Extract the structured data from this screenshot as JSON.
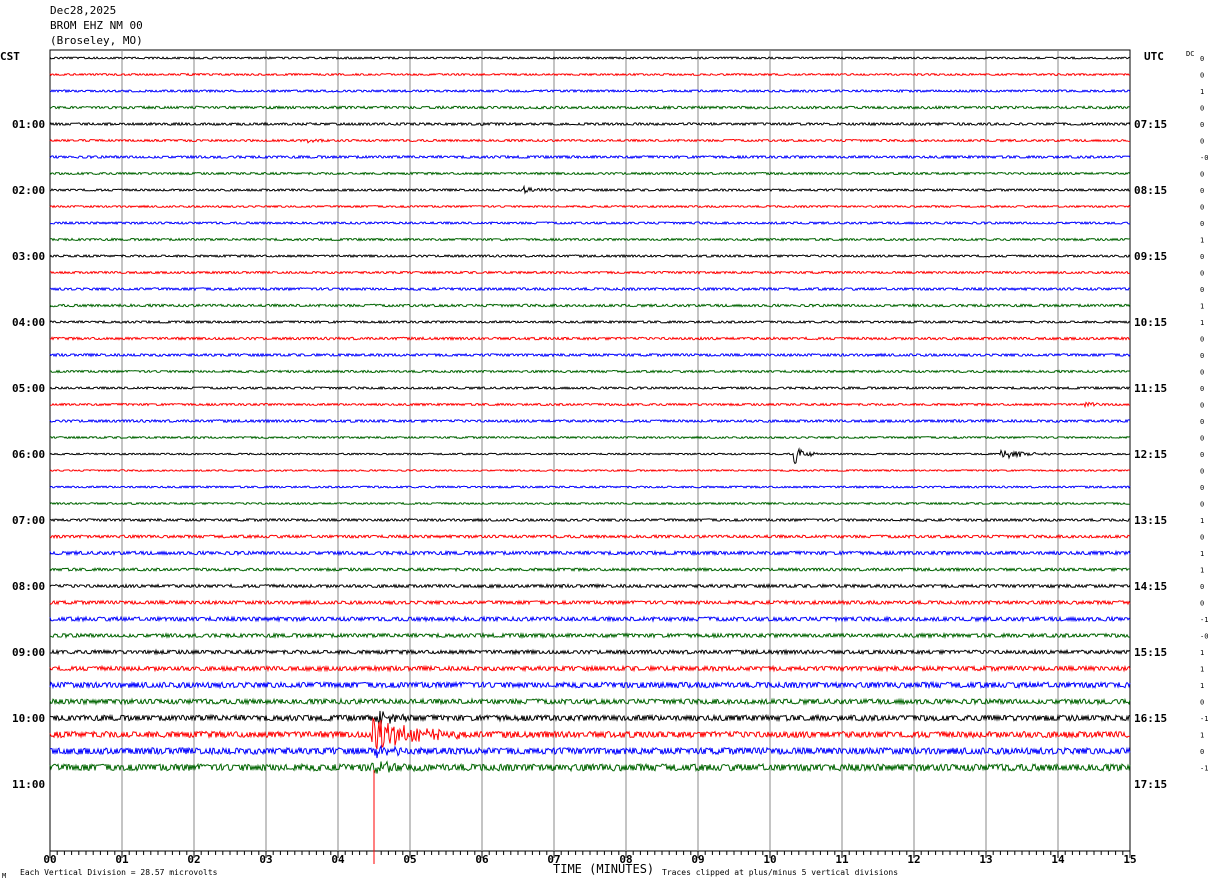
{
  "header": {
    "date": "Dec28,2025",
    "station": "BROM EHZ NM 00",
    "location": "(Broseley, MO)"
  },
  "left_tz": "CST",
  "right_tz": "UTC",
  "dc_label": "DC",
  "footer": {
    "scale_text": "Each Vertical Division =   28.57 microvolts",
    "clip_text": "Traces clipped at plus/minus 5 vertical divisions",
    "corner_mark": "M"
  },
  "chart_data": {
    "type": "line",
    "title": "",
    "xlabel": "TIME (MINUTES)",
    "ylabel": "",
    "xlim": [
      0,
      15
    ],
    "x_ticks": [
      "00",
      "01",
      "02",
      "03",
      "04",
      "05",
      "06",
      "07",
      "08",
      "09",
      "10",
      "11",
      "12",
      "13",
      "14",
      "15"
    ],
    "traces_per_hour": 4,
    "trace_colors": [
      "#000000",
      "#ff0000",
      "#0000ff",
      "#006400"
    ],
    "left_hour_labels": [
      "01:00",
      "02:00",
      "03:00",
      "04:00",
      "05:00",
      "06:00",
      "07:00",
      "08:00",
      "09:00",
      "10:00",
      "11:00"
    ],
    "right_hour_labels": [
      "07:15",
      "08:15",
      "09:15",
      "10:15",
      "11:15",
      "12:15",
      "13:15",
      "14:15",
      "15:15",
      "16:15",
      "17:15"
    ],
    "dc_offsets": [
      "0",
      "0",
      "1",
      "0",
      "0",
      "0",
      "-0",
      "0",
      "0",
      "0",
      "0",
      "1",
      "0",
      "0",
      "0",
      "1",
      "1",
      "0",
      "0",
      "0",
      "0",
      "0",
      "0",
      "0",
      "0",
      "0",
      "0",
      "0",
      "1",
      "0",
      "1",
      "1",
      "0",
      "0",
      "-1",
      "-0",
      "1",
      "1",
      "1",
      "0",
      "-1",
      "1",
      "0",
      "-1"
    ],
    "amplitudes": [
      0.6,
      0.6,
      0.7,
      0.8,
      0.8,
      0.7,
      0.8,
      0.7,
      0.7,
      0.6,
      0.7,
      0.7,
      0.7,
      0.7,
      0.8,
      0.8,
      0.7,
      0.8,
      0.8,
      0.7,
      0.7,
      0.7,
      0.8,
      0.6,
      0.5,
      0.5,
      0.6,
      0.6,
      0.8,
      0.9,
      1.1,
      0.9,
      1.0,
      1.1,
      1.3,
      1.2,
      1.2,
      1.4,
      1.8,
      1.6,
      1.8,
      2.0,
      2.1,
      2.2
    ],
    "events": [
      {
        "trace": 24,
        "minute": 10.35,
        "amplitude": 9,
        "duration": 0.35
      },
      {
        "trace": 24,
        "minute": 13.2,
        "amplitude": 5,
        "duration": 0.9
      },
      {
        "trace": 8,
        "minute": 6.6,
        "amplitude": 4,
        "duration": 0.4
      },
      {
        "trace": 40,
        "minute": 4.55,
        "amplitude": 10,
        "duration": 0.5
      },
      {
        "trace": 41,
        "minute": 4.5,
        "amplitude": 20,
        "duration": 1.3
      },
      {
        "trace": 42,
        "minute": 4.5,
        "amplitude": 8,
        "duration": 0.6
      },
      {
        "trace": 43,
        "minute": 4.5,
        "amplitude": 7,
        "duration": 0.6
      },
      {
        "trace": 5,
        "minute": 3.6,
        "amplitude": 3,
        "duration": 0.3
      },
      {
        "trace": 21,
        "minute": 14.4,
        "amplitude": 3,
        "duration": 0.3
      }
    ],
    "marker_minute": 4.5,
    "marker_color": "#ff0000"
  }
}
